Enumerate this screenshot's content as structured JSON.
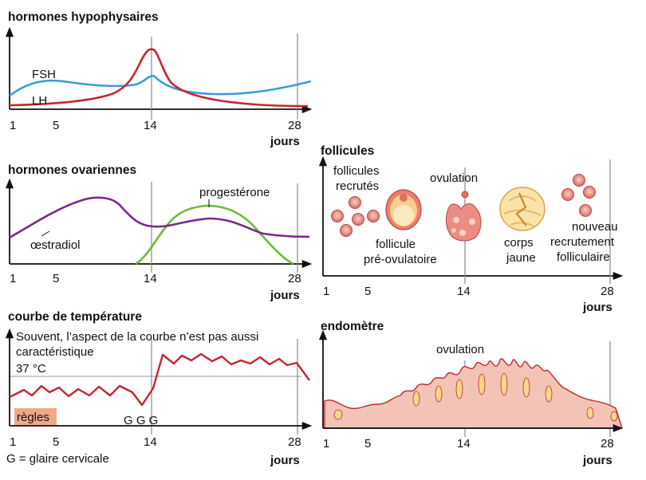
{
  "panels": {
    "hypophysaires": {
      "title": "hormones hypophysaires",
      "labels": {
        "fsh": "FSH",
        "lh": "LH"
      },
      "colors": {
        "fsh": "#3d9bd6",
        "lh": "#c4262e"
      }
    },
    "ovariennes": {
      "title": "hormones ovariennes",
      "labels": {
        "progesterone": "progestérone",
        "oestradiol": "œstradiol"
      },
      "colors": {
        "oestradiol": "#7b2a8e",
        "progesterone": "#6dbb3a"
      }
    },
    "temperature": {
      "title": "courbe de température",
      "note": "Souvent, l’aspect de la courbe n’est  pas aussi",
      "note2": "caractéristique",
      "ref_label": "37 °C",
      "regles": "règles",
      "glaire_marks": "G G G",
      "legend": "G = glaire cervicale",
      "colors": {
        "curve": "#c4262e",
        "regles": "#f0a888"
      }
    },
    "follicules": {
      "title": "follicules",
      "labels": {
        "recrutes": [
          "follicules",
          "recrutés"
        ],
        "ovulation": "ovulation",
        "preovulatoire": [
          "follicule",
          "pré-ovulatoire"
        ],
        "corps": [
          "corps",
          "jaune"
        ],
        "nouveau": [
          "nouveau",
          "recrutement",
          "folliculaire"
        ]
      }
    },
    "endometre": {
      "title": "endomètre",
      "ovulation": "ovulation",
      "colors": {
        "tissue": "#f3c4b6",
        "outline": "#c4262e"
      }
    }
  },
  "axis": {
    "ticks": [
      "1",
      "5",
      "14",
      "28"
    ],
    "unit": "jours"
  }
}
